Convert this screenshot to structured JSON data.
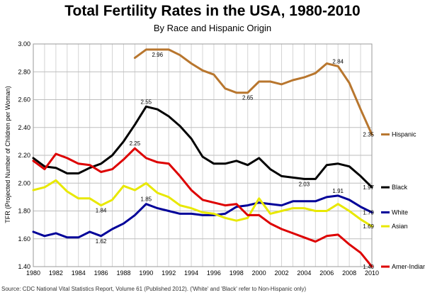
{
  "chart_data": {
    "type": "line",
    "title": "Total Fertility Rates in the USA, 1980-2010",
    "subtitle": "By Race and Hispanic Origin",
    "ylabel": "TFR (Projected Number of Children per Woman)",
    "xlabel": "",
    "source": "Source: CDC National Vital Statistics Report, Volume 61 (Published 2012). ('White' and 'Black' refer to Non-Hispanic only)",
    "ylim": [
      1.4,
      3.0
    ],
    "xlim": [
      1980,
      2010
    ],
    "yticks": [
      "1.40",
      "1.60",
      "1.80",
      "2.00",
      "2.20",
      "2.40",
      "2.60",
      "2.80",
      "3.00"
    ],
    "xticks": [
      "1980",
      "1982",
      "1984",
      "1986",
      "1988",
      "1990",
      "1992",
      "1994",
      "1996",
      "1998",
      "2000",
      "2002",
      "2004",
      "2006",
      "2008",
      "2010"
    ],
    "grid": true,
    "legend": "right, at series ends",
    "series": [
      {
        "name": "Hispanic",
        "color": "#b8762e",
        "x": [
          1989,
          1990,
          1991,
          1992,
          1993,
          1994,
          1995,
          1996,
          1997,
          1998,
          1999,
          2000,
          2001,
          2002,
          2003,
          2004,
          2005,
          2006,
          2007,
          2008,
          2009,
          2010
        ],
        "y": [
          2.9,
          2.96,
          2.96,
          2.96,
          2.92,
          2.86,
          2.81,
          2.78,
          2.68,
          2.65,
          2.65,
          2.73,
          2.73,
          2.71,
          2.74,
          2.76,
          2.79,
          2.86,
          2.84,
          2.72,
          2.53,
          2.35
        ],
        "labels": [
          {
            "x": 1991,
            "y": 2.96,
            "text": "2.96"
          },
          {
            "x": 1999,
            "y": 2.65,
            "text": "2.65"
          },
          {
            "x": 2007,
            "y": 2.84,
            "text": "2.84"
          },
          {
            "x": 2010,
            "y": 2.35,
            "text": "2.35"
          }
        ]
      },
      {
        "name": "Black",
        "color": "#000000",
        "x": [
          1980,
          1981,
          1982,
          1983,
          1984,
          1985,
          1986,
          1987,
          1988,
          1989,
          1990,
          1991,
          1992,
          1993,
          1994,
          1995,
          1996,
          1997,
          1998,
          1999,
          2000,
          2001,
          2002,
          2003,
          2004,
          2005,
          2006,
          2007,
          2008,
          2009,
          2010
        ],
        "y": [
          2.18,
          2.12,
          2.11,
          2.07,
          2.07,
          2.11,
          2.14,
          2.2,
          2.3,
          2.42,
          2.55,
          2.53,
          2.48,
          2.41,
          2.32,
          2.19,
          2.14,
          2.14,
          2.16,
          2.13,
          2.18,
          2.1,
          2.05,
          2.04,
          2.03,
          2.03,
          2.13,
          2.14,
          2.12,
          2.05,
          1.97
        ],
        "labels": [
          {
            "x": 1990,
            "y": 2.55,
            "text": "2.55"
          },
          {
            "x": 2004,
            "y": 2.03,
            "text": "2.03"
          },
          {
            "x": 2010,
            "y": 1.97,
            "text": "1.97"
          }
        ]
      },
      {
        "name": "White",
        "color": "#000099",
        "x": [
          1980,
          1981,
          1982,
          1983,
          1984,
          1985,
          1986,
          1987,
          1988,
          1989,
          1990,
          1991,
          1992,
          1993,
          1994,
          1995,
          1996,
          1997,
          1998,
          1999,
          2000,
          2001,
          2002,
          2003,
          2004,
          2005,
          2006,
          2007,
          2008,
          2009,
          2010
        ],
        "y": [
          1.65,
          1.62,
          1.64,
          1.61,
          1.61,
          1.65,
          1.62,
          1.67,
          1.71,
          1.77,
          1.85,
          1.82,
          1.8,
          1.78,
          1.78,
          1.77,
          1.77,
          1.78,
          1.83,
          1.84,
          1.86,
          1.85,
          1.84,
          1.87,
          1.87,
          1.87,
          1.9,
          1.91,
          1.88,
          1.83,
          1.79
        ],
        "labels": [
          {
            "x": 1986,
            "y": 1.62,
            "text": "1.62"
          },
          {
            "x": 1990,
            "y": 1.85,
            "text": "1.85"
          },
          {
            "x": 2007,
            "y": 1.91,
            "text": "1.91"
          },
          {
            "x": 2010,
            "y": 1.79,
            "text": "1.79"
          }
        ]
      },
      {
        "name": "Asian",
        "color": "#e8e800",
        "x": [
          1980,
          1981,
          1982,
          1983,
          1984,
          1985,
          1986,
          1987,
          1988,
          1989,
          1990,
          1991,
          1992,
          1993,
          1994,
          1995,
          1996,
          1997,
          1998,
          1999,
          2000,
          2001,
          2002,
          2003,
          2004,
          2005,
          2006,
          2007,
          2008,
          2009,
          2010
        ],
        "y": [
          1.95,
          1.97,
          2.02,
          1.94,
          1.89,
          1.89,
          1.84,
          1.88,
          1.98,
          1.95,
          2.0,
          1.93,
          1.9,
          1.84,
          1.82,
          1.79,
          1.78,
          1.75,
          1.73,
          1.75,
          1.89,
          1.78,
          1.8,
          1.82,
          1.82,
          1.8,
          1.8,
          1.85,
          1.8,
          1.74,
          1.69
        ],
        "labels": [
          {
            "x": 1986,
            "y": 1.84,
            "text": "1.84"
          },
          {
            "x": 2010,
            "y": 1.69,
            "text": "1.69"
          }
        ]
      },
      {
        "name": "Amer-Indian",
        "color": "#dd0000",
        "x": [
          1980,
          1981,
          1982,
          1983,
          1984,
          1985,
          1986,
          1987,
          1988,
          1989,
          1990,
          1991,
          1992,
          1993,
          1994,
          1995,
          1996,
          1997,
          1998,
          1999,
          2000,
          2001,
          2002,
          2003,
          2004,
          2005,
          2006,
          2007,
          2008,
          2009,
          2010
        ],
        "y": [
          2.16,
          2.1,
          2.21,
          2.18,
          2.14,
          2.13,
          2.08,
          2.1,
          2.17,
          2.25,
          2.18,
          2.15,
          2.14,
          2.05,
          1.95,
          1.88,
          1.86,
          1.84,
          1.85,
          1.77,
          1.77,
          1.71,
          1.67,
          1.64,
          1.61,
          1.58,
          1.62,
          1.63,
          1.56,
          1.5,
          1.4
        ],
        "labels": [
          {
            "x": 1989,
            "y": 2.25,
            "text": "2.25"
          },
          {
            "x": 2010,
            "y": 1.4,
            "text": "1.40"
          }
        ]
      }
    ]
  }
}
